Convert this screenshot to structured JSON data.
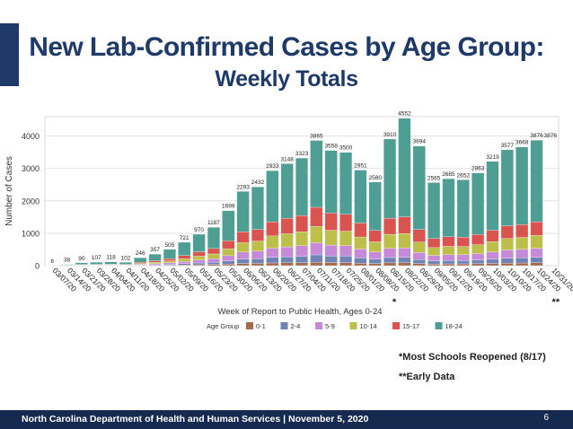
{
  "title_line1": "New Lab-Confirmed Cases by Age Group:",
  "title_line2": "Weekly Totals",
  "colors": {
    "accent": "#1f3a68",
    "title": "#1f3a68",
    "footer_bg": "#152a4e"
  },
  "notes": {
    "schools": "*Most Schools Reopened (8/17)",
    "early": "**Early Data"
  },
  "footer": {
    "text": "North Carolina Department of Health and Human Services | November 5, 2020",
    "page_number": "6"
  },
  "chart_data": {
    "type": "bar",
    "stacked": true,
    "ylabel": "Number of Cases",
    "xlabel": "Week of Report to Public Health, Ages 0-24",
    "ylim": [
      0,
      4600
    ],
    "yticks": [
      0,
      1000,
      2000,
      3000,
      4000
    ],
    "grid": true,
    "legend_title": "Age Group",
    "legend_position": "bottom",
    "categories": [
      "03/07/20",
      "03/14/20",
      "03/21/20",
      "03/28/20",
      "04/04/20",
      "04/11/20",
      "04/18/20",
      "04/25/20",
      "05/02/20",
      "05/09/20",
      "05/16/20",
      "05/23/20",
      "05/30/20",
      "06/06/20",
      "06/13/20",
      "06/20/20",
      "06/27/20",
      "07/04/20",
      "07/11/20",
      "07/18/20",
      "07/25/20",
      "08/01/20",
      "08/08/20",
      "08/15/20",
      "08/22/20",
      "08/29/20",
      "09/05/20",
      "09/12/20",
      "09/19/20",
      "09/26/20",
      "10/03/20",
      "10/10/20",
      "10/17/20",
      "10/24/20",
      "10/31/20"
    ],
    "category_marks": {
      "08/15/20": "*",
      "10/31/20": "**"
    },
    "totals": [
      6,
      38,
      90,
      107,
      118,
      102,
      246,
      357,
      505,
      721,
      970,
      1187,
      1699,
      2293,
      2432,
      2933,
      3148,
      3323,
      3865,
      3558,
      3500,
      2951,
      2580,
      3910,
      4552,
      3694,
      2565,
      2685,
      2652,
      2863,
      3219,
      3577,
      3668,
      3876,
      null
    ],
    "series": [
      {
        "name": "0-1",
        "color": "#a5684a",
        "values": [
          0,
          1,
          3,
          3,
          3,
          3,
          7,
          10,
          14,
          20,
          28,
          34,
          50,
          67,
          71,
          83,
          88,
          93,
          105,
          95,
          92,
          77,
          66,
          86,
          91,
          66,
          52,
          55,
          55,
          60,
          69,
          79,
          82,
          88,
          0
        ]
      },
      {
        "name": "2-4",
        "color": "#6f83b5",
        "values": [
          1,
          2,
          5,
          5,
          6,
          5,
          13,
          20,
          28,
          40,
          55,
          68,
          98,
          135,
          144,
          174,
          186,
          197,
          228,
          206,
          202,
          168,
          135,
          164,
          164,
          122,
          98,
          105,
          105,
          116,
          133,
          152,
          159,
          171,
          0
        ]
      },
      {
        "name": "5-9",
        "color": "#c78ad9",
        "values": [
          1,
          4,
          7,
          8,
          9,
          8,
          21,
          32,
          45,
          65,
          90,
          110,
          160,
          218,
          233,
          284,
          307,
          325,
          376,
          335,
          325,
          268,
          219,
          281,
          291,
          216,
          164,
          178,
          177,
          193,
          223,
          252,
          261,
          279,
          0
        ]
      },
      {
        "name": "10-14",
        "color": "#bcc04a",
        "values": [
          1,
          4,
          10,
          12,
          13,
          11,
          28,
          43,
          61,
          88,
          121,
          149,
          215,
          292,
          311,
          378,
          408,
          432,
          506,
          458,
          448,
          373,
          317,
          438,
          446,
          325,
          244,
          259,
          256,
          279,
          318,
          358,
          370,
          397,
          0
        ]
      },
      {
        "name": "15-17",
        "color": "#d9534f",
        "values": [
          1,
          5,
          11,
          13,
          15,
          13,
          32,
          47,
          68,
          98,
          135,
          168,
          244,
          334,
          357,
          434,
          469,
          498,
          587,
          530,
          518,
          431,
          348,
          489,
          515,
          388,
          280,
          295,
          290,
          311,
          351,
          390,
          398,
          419,
          0
        ]
      },
      {
        "name": "18-24",
        "color": "#4e9e93",
        "values": [
          2,
          22,
          54,
          66,
          72,
          62,
          145,
          205,
          289,
          410,
          541,
          658,
          932,
          1247,
          1316,
          1580,
          1690,
          1778,
          2063,
          1934,
          1915,
          1634,
          1495,
          2452,
          3045,
          2577,
          1727,
          1793,
          1769,
          1904,
          2125,
          2346,
          2398,
          2522,
          0
        ]
      }
    ],
    "last_bar_value": 3876
  }
}
